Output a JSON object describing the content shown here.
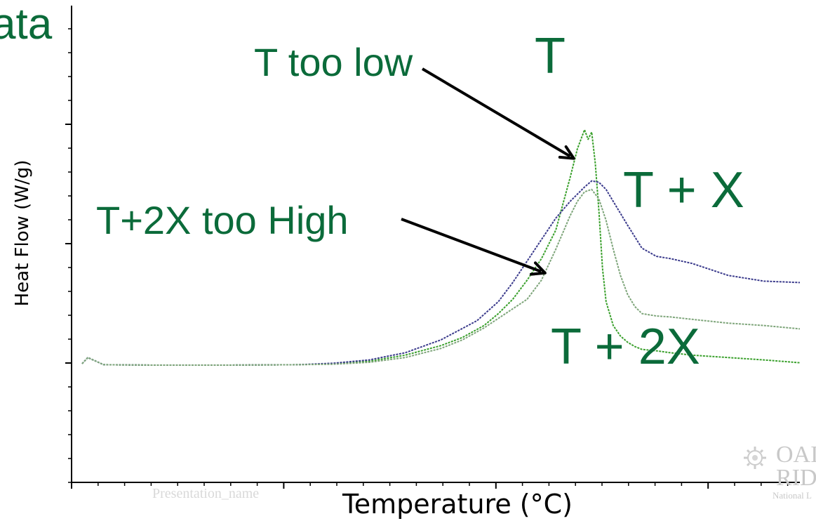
{
  "page": {
    "partial_title": "ata",
    "footer_text": "Presentation_name",
    "logo": {
      "line1": "OAI",
      "line2": "RID",
      "line3": "National L"
    }
  },
  "colors": {
    "annotation": "#0b6b3a",
    "series_T": "#3aa02c",
    "series_T_plus_X": "#3b3b8c",
    "series_T_plus_2X": "#7ea57a",
    "axis": "#000000"
  },
  "chart_data": {
    "type": "line",
    "xlabel": "Temperature (°C)",
    "ylabel": "Heat Flow (W/g)",
    "xlim": [
      0,
      100
    ],
    "ylim": [
      0,
      100
    ],
    "tick_labels_shown": false,
    "grid": false,
    "legend": "none",
    "series": [
      {
        "name": "T",
        "x": [
          0,
          0.8,
          3,
          10,
          20,
          30,
          35,
          40,
          45,
          50,
          53,
          56,
          58,
          60,
          62,
          64,
          66,
          68,
          69,
          70,
          70.5,
          71,
          71.5,
          72,
          72.5,
          73,
          74,
          75,
          76,
          77,
          78,
          80,
          82,
          85,
          90,
          95,
          100
        ],
        "y": [
          50,
          51.3,
          49.8,
          49.7,
          49.7,
          49.8,
          50,
          50.5,
          51.8,
          53.8,
          55.5,
          58,
          60.5,
          63.5,
          67.5,
          72,
          78,
          89,
          95,
          99,
          97,
          98.5,
          92,
          82,
          70,
          63,
          58,
          55.8,
          54.5,
          53.6,
          53,
          52.7,
          52.3,
          51.8,
          51.3,
          50.8,
          50.2
        ]
      },
      {
        "name": "T + X",
        "x": [
          0,
          0.8,
          3,
          10,
          20,
          30,
          35,
          40,
          45,
          50,
          55,
          58,
          60,
          62,
          64,
          66,
          68,
          70,
          71,
          72,
          73,
          74,
          76,
          78,
          80,
          82,
          85,
          90,
          95,
          100
        ],
        "y": [
          50,
          51.3,
          49.8,
          49.7,
          49.7,
          49.8,
          50.1,
          50.8,
          52.3,
          55,
          59,
          63,
          67,
          71.5,
          76,
          80.5,
          84,
          87,
          88.3,
          88,
          86.5,
          84,
          79,
          74.2,
          72.5,
          72,
          71,
          68.5,
          67.3,
          67
        ]
      },
      {
        "name": "T + 2X",
        "x": [
          0,
          0.8,
          3,
          10,
          20,
          30,
          35,
          40,
          45,
          50,
          53,
          56,
          58,
          60,
          62,
          64,
          66,
          68,
          69,
          70,
          71,
          72,
          73,
          74,
          75,
          76,
          77,
          78,
          80,
          82,
          85,
          90,
          95,
          100
        ],
        "y": [
          50,
          51.3,
          49.8,
          49.7,
          49.7,
          49.8,
          49.9,
          50.3,
          51.3,
          53.2,
          55,
          57.5,
          59.5,
          61.5,
          63.5,
          67.5,
          74,
          81,
          84,
          86,
          86.5,
          84.5,
          80,
          74,
          68.5,
          64.5,
          62,
          60.5,
          60,
          59.8,
          59.3,
          58.5,
          58,
          57.3
        ]
      }
    ],
    "annotations": [
      {
        "id": "low",
        "text": "T too low",
        "arrow": true,
        "point_x": 68.5,
        "point_y": 93
      },
      {
        "id": "t",
        "text": "T",
        "arrow": false
      },
      {
        "id": "tx",
        "text": "T + X",
        "arrow": false
      },
      {
        "id": "high",
        "text": "T+2X too High",
        "arrow": true,
        "point_x": 64.5,
        "point_y": 69
      },
      {
        "id": "t2x",
        "text": "T + 2X",
        "arrow": false
      }
    ]
  }
}
